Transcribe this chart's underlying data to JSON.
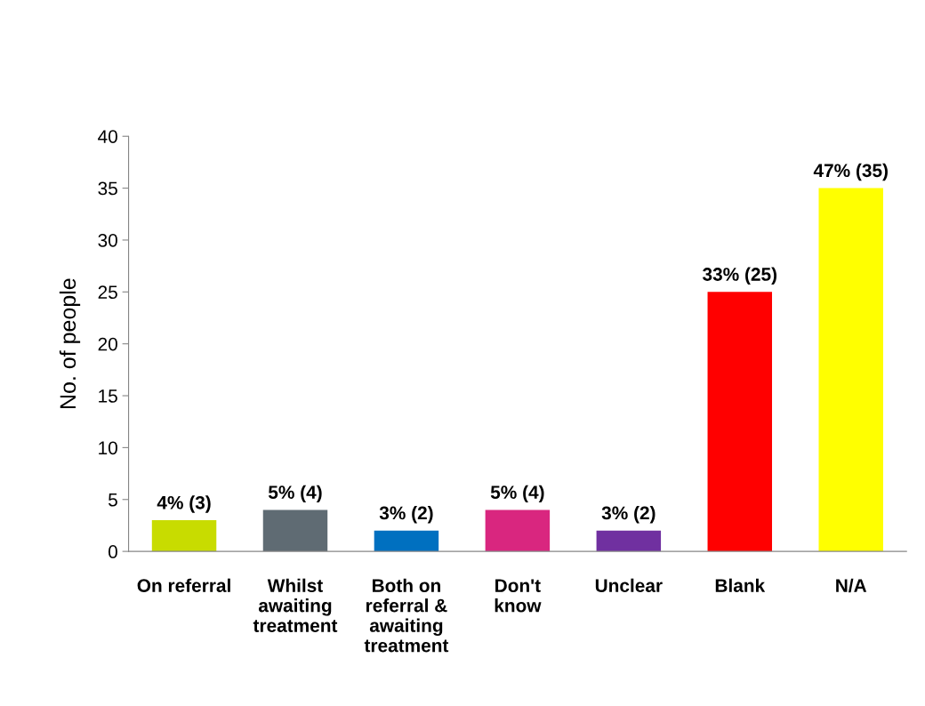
{
  "chart_data": {
    "type": "bar",
    "ylabel": "No. of people",
    "categories": [
      "On referral",
      "Whilst\nawaiting\ntreatment",
      "Both on\nreferral &\nawaiting\ntreatment",
      "Don't\nknow",
      "Unclear",
      "Blank",
      "N/A"
    ],
    "values": [
      3,
      4,
      2,
      4,
      2,
      25,
      35
    ],
    "colors": [
      "#c8dc00",
      "#5f6b73",
      "#0070c0",
      "#d9267f",
      "#7030a0",
      "#ff0000",
      "#ffff00"
    ],
    "value_labels": [
      "4% (3)",
      "5% (4)",
      "3% (2)",
      "5% (4)",
      "3% (2)",
      "33% (25)",
      "47% (35)"
    ],
    "ylim": [
      0,
      40
    ],
    "yticks": [
      0,
      5,
      10,
      15,
      20,
      25,
      30,
      35,
      40
    ],
    "grid": false,
    "legend": false
  }
}
